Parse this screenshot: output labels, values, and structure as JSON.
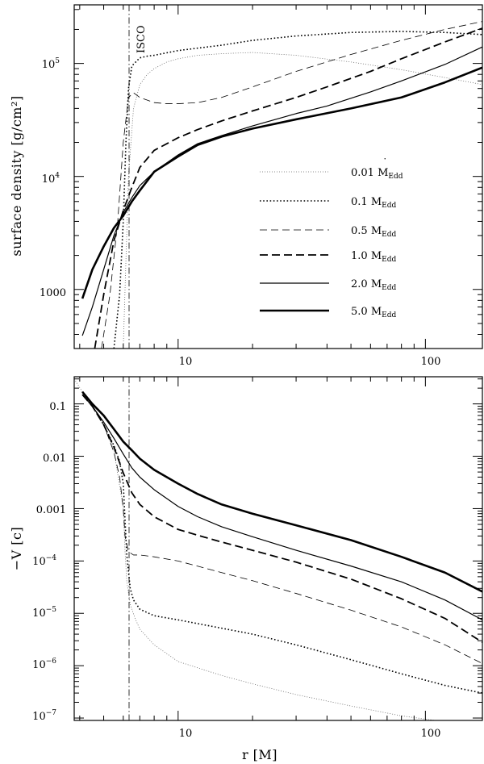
{
  "chart_data": [
    {
      "id": "top",
      "type": "line",
      "ylabel": "surface density [g/cm²]",
      "xlabel": "",
      "xscale": "log",
      "yscale": "log",
      "xlim": [
        3.8,
        170
      ],
      "ylim": [
        300,
        330000
      ],
      "xticks": [
        {
          "value": 10,
          "label": "10"
        },
        {
          "value": 100,
          "label": "100"
        }
      ],
      "yticks": [
        {
          "value": 1000,
          "label": "1000"
        },
        {
          "value": 10000,
          "label": "10",
          "exp": "4"
        },
        {
          "value": 100000,
          "label": "10",
          "exp": "5"
        }
      ],
      "annotations": [
        {
          "text": "ISCO",
          "x": 6.0
        }
      ],
      "isco_x": 6.0,
      "legend": {
        "location": "lower-right",
        "entries": [
          {
            "number": "0.01",
            "symbol": "M",
            "sub": "Edd",
            "style": "fine-dotted"
          },
          {
            "number": "0.1",
            "symbol": "M",
            "sub": "Edd",
            "style": "dotted"
          },
          {
            "number": "0.5",
            "symbol": "M",
            "sub": "Edd",
            "style": "thin-dashed"
          },
          {
            "number": "1.0",
            "symbol": "M",
            "sub": "Edd",
            "style": "thick-dashed"
          },
          {
            "number": "2.0",
            "symbol": "M",
            "sub": "Edd",
            "style": "solid"
          },
          {
            "number": "5.0",
            "symbol": "M",
            "sub": "Edd",
            "style": "thick-solid"
          }
        ]
      },
      "series": [
        {
          "name": "0.01 Mdot_Edd",
          "style": "fine-dotted",
          "x": [
            6.0,
            6.1,
            6.3,
            6.6,
            7.0,
            7.5,
            8.0,
            9.0,
            10,
            12,
            15,
            20,
            30,
            50,
            80,
            120,
            170
          ],
          "y": [
            300,
            1000,
            10000,
            40000,
            65000,
            80000,
            90000,
            103000,
            110000,
            118000,
            122000,
            125000,
            118000,
            103000,
            88000,
            75000,
            65000
          ]
        },
        {
          "name": "0.1 Mdot_Edd",
          "style": "dotted",
          "x": [
            5.5,
            5.8,
            6.0,
            6.15,
            6.3,
            6.5,
            7.0,
            7.5,
            8.0,
            10,
            15,
            20,
            30,
            50,
            80,
            120,
            170
          ],
          "y": [
            300,
            900,
            4000,
            20000,
            60000,
            95000,
            112000,
            116000,
            118000,
            130000,
            145000,
            160000,
            175000,
            188000,
            192000,
            188000,
            180000
          ]
        },
        {
          "name": "0.5 Mdot_Edd",
          "style": "thin-dashed",
          "x": [
            4.9,
            5.3,
            5.7,
            6.0,
            6.3,
            6.6,
            7.0,
            8.0,
            9.0,
            10,
            12,
            15,
            20,
            30,
            50,
            80,
            120,
            170
          ],
          "y": [
            300,
            900,
            4000,
            20000,
            50000,
            55000,
            50000,
            45000,
            44000,
            44000,
            45000,
            50000,
            62000,
            85000,
            120000,
            160000,
            200000,
            235000
          ]
        },
        {
          "name": "1.0 Mdot_Edd",
          "style": "thick-dashed",
          "x": [
            4.6,
            5.0,
            5.5,
            6.0,
            6.5,
            7.0,
            8.0,
            10,
            12,
            15,
            20,
            30,
            40,
            60,
            80,
            120,
            170
          ],
          "y": [
            300,
            900,
            2700,
            5000,
            8000,
            12000,
            17000,
            22000,
            26000,
            31000,
            38000,
            50000,
            62000,
            85000,
            110000,
            155000,
            205000
          ]
        },
        {
          "name": "2.0 Mdot_Edd",
          "style": "solid",
          "x": [
            4.1,
            4.5,
            5.0,
            5.5,
            6.0,
            6.5,
            7.0,
            8.0,
            10,
            12,
            15,
            20,
            30,
            40,
            60,
            80,
            120,
            170
          ],
          "y": [
            390,
            700,
            1500,
            3000,
            4800,
            6500,
            8300,
            11000,
            15500,
            19500,
            23000,
            28000,
            36000,
            42000,
            56000,
            70000,
            98000,
            140000
          ]
        },
        {
          "name": "5.0 Mdot_Edd",
          "style": "thick-solid",
          "x": [
            4.1,
            4.5,
            5.0,
            5.5,
            6.0,
            6.5,
            7.0,
            8.0,
            10,
            12,
            15,
            20,
            30,
            50,
            80,
            120,
            170
          ],
          "y": [
            830,
            1500,
            2400,
            3500,
            4500,
            6000,
            7500,
            11000,
            15000,
            19000,
            22500,
            26500,
            32000,
            40000,
            50000,
            68000,
            92000
          ]
        }
      ]
    },
    {
      "id": "bottom",
      "type": "line",
      "ylabel": "−V [c]",
      "xlabel": "r [M]",
      "xscale": "log",
      "yscale": "log",
      "xlim": [
        3.8,
        170
      ],
      "ylim": [
        9e-08,
        0.33
      ],
      "xticks": [
        {
          "value": 10,
          "label": "10"
        },
        {
          "value": 100,
          "label": "100"
        }
      ],
      "yticks": [
        {
          "value": 0.1,
          "label": "0.1"
        },
        {
          "value": 0.01,
          "label": "0.01"
        },
        {
          "value": 0.001,
          "label": "0.001"
        },
        {
          "value": 0.0001,
          "label": "10",
          "exp": "−4"
        },
        {
          "value": 1e-05,
          "label": "10",
          "exp": "−5"
        },
        {
          "value": 1e-06,
          "label": "10",
          "exp": "−6"
        },
        {
          "value": 1e-07,
          "label": "10",
          "exp": "−7"
        }
      ],
      "isco_x": 6.0,
      "series": [
        {
          "name": "0.01 Mdot_Edd",
          "style": "fine-dotted",
          "x": [
            3.8,
            4.1,
            4.5,
            5.0,
            5.5,
            6.0,
            6.1,
            6.2,
            6.4,
            6.7,
            7.0,
            8.0,
            10,
            15,
            20,
            30,
            50,
            80,
            120,
            170
          ],
          "y": [
            0.3,
            0.17,
            0.095,
            0.04,
            0.013,
            0.001,
            0.00015,
            4e-05,
            1.5e-05,
            8e-06,
            5e-06,
            2.5e-06,
            1.2e-06,
            6.5e-07,
            4.5e-07,
            2.8e-07,
            1.7e-07,
            1.1e-07,
            8.5e-08,
            7e-08
          ]
        },
        {
          "name": "0.1 Mdot_Edd",
          "style": "dotted",
          "x": [
            4.1,
            4.5,
            5.0,
            5.5,
            5.8,
            6.0,
            6.1,
            6.2,
            6.4,
            6.6,
            7.0,
            8.0,
            10,
            15,
            20,
            30,
            50,
            80,
            120,
            170
          ],
          "y": [
            0.15,
            0.09,
            0.04,
            0.016,
            0.008,
            0.003,
            0.0006,
            0.00013,
            3e-05,
            1.8e-05,
            1.2e-05,
            9e-06,
            7.5e-06,
            5.2e-06,
            4e-06,
            2.5e-06,
            1.3e-06,
            7e-07,
            4.2e-07,
            3e-07
          ]
        },
        {
          "name": "0.5 Mdot_Edd",
          "style": "thin-dashed",
          "x": [
            4.1,
            4.5,
            5.0,
            5.5,
            5.8,
            6.0,
            6.1,
            6.3,
            6.6,
            7.0,
            8.0,
            10,
            15,
            20,
            30,
            50,
            80,
            120,
            170
          ],
          "y": [
            0.15,
            0.09,
            0.04,
            0.012,
            0.004,
            0.001,
            0.0003,
            0.00015,
            0.00013,
            0.00013,
            0.00012,
            0.0001,
            6e-05,
            4.2e-05,
            2.4e-05,
            1.15e-05,
            5.5e-06,
            2.5e-06,
            1.1e-06
          ]
        },
        {
          "name": "1.0 Mdot_Edd",
          "style": "thick-dashed",
          "x": [
            4.1,
            4.5,
            5.0,
            5.5,
            6.0,
            6.5,
            7.0,
            8.0,
            10,
            12,
            15,
            20,
            30,
            50,
            80,
            120,
            170
          ],
          "y": [
            0.15,
            0.09,
            0.04,
            0.015,
            0.0048,
            0.002,
            0.0012,
            0.0007,
            0.0004,
            0.00031,
            0.00023,
            0.00016,
            9.5e-05,
            4.5e-05,
            1.9e-05,
            8e-06,
            2.8e-06
          ]
        },
        {
          "name": "2.0 Mdot_Edd",
          "style": "solid",
          "x": [
            4.1,
            4.5,
            5.0,
            5.5,
            6.0,
            6.5,
            7.0,
            8.0,
            10,
            12,
            15,
            20,
            30,
            50,
            80,
            120,
            170
          ],
          "y": [
            0.15,
            0.09,
            0.045,
            0.022,
            0.011,
            0.006,
            0.004,
            0.0023,
            0.0011,
            0.0007,
            0.00045,
            0.00029,
            0.00016,
            8e-05,
            4e-05,
            1.8e-05,
            7.5e-06
          ]
        },
        {
          "name": "5.0 Mdot_Edd",
          "style": "thick-solid",
          "x": [
            4.1,
            4.5,
            5.0,
            5.5,
            6.0,
            6.5,
            7.0,
            8.0,
            10,
            12,
            15,
            20,
            30,
            50,
            80,
            120,
            170
          ],
          "y": [
            0.17,
            0.1,
            0.06,
            0.033,
            0.019,
            0.013,
            0.009,
            0.0055,
            0.003,
            0.0019,
            0.0012,
            0.0008,
            0.00048,
            0.00025,
            0.00012,
            6e-05,
            2.6e-05
          ]
        }
      ]
    }
  ]
}
